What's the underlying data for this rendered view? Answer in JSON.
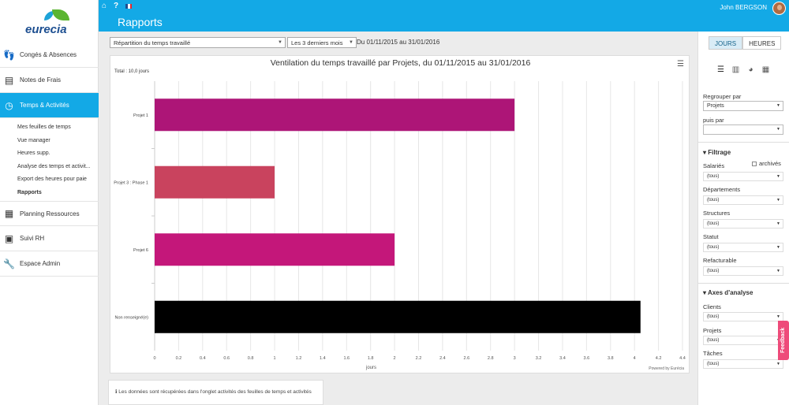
{
  "app": {
    "brand": "eurecia",
    "page_title": "Rapports",
    "user_name": "John  BERGSON"
  },
  "sidebar": {
    "items": [
      {
        "label": "Congés & Absences",
        "icon": "flip-flops-icon"
      },
      {
        "label": "Notes de Frais",
        "icon": "receipt-icon"
      },
      {
        "label": "Temps & Activités",
        "icon": "clock-icon"
      },
      {
        "label": "Planning Ressources",
        "icon": "calendar-icon"
      },
      {
        "label": "Suivi RH",
        "icon": "folder-user-icon"
      },
      {
        "label": "Espace Admin",
        "icon": "wrench-icon"
      }
    ],
    "subitems": [
      "Mes feuilles de temps",
      "Vue manager",
      "Heures supp.",
      "Analyse des temps et activit...",
      "Export des heures pour paie",
      "Rapports"
    ]
  },
  "filters": {
    "report_type": "Répartition du temps travaillé",
    "period": "Les 3 derniers mois",
    "date_range": "Du 01/11/2015  au 31/01/2016"
  },
  "chart_meta": {
    "total": "Total : 10,0 jours",
    "powered": "Powered by Eurécia",
    "menu_icon": "hamburger-icon"
  },
  "chart_data": {
    "type": "bar",
    "orientation": "horizontal",
    "title": "Ventilation du temps travaillé par Projets, du 01/11/2015 au 31/01/2016",
    "xlabel": "jours",
    "categories": [
      "Projet 1",
      "Projet 3 : Phase 1",
      "Projet 6",
      "Non renseigné(e)"
    ],
    "values": [
      3.0,
      1.0,
      2.0,
      4.05
    ],
    "colors": [
      "#ad1577",
      "#c9435e",
      "#c4177a",
      "#000000"
    ],
    "xlim": [
      0,
      4.4
    ],
    "xticks": [
      "0",
      "0.2",
      "0.4",
      "0.6",
      "0.8",
      "1",
      "1.2",
      "1.4",
      "1.6",
      "1.8",
      "2",
      "2.2",
      "2.4",
      "2.6",
      "2.8",
      "3",
      "3.2",
      "3.4",
      "3.6",
      "3.8",
      "4",
      "4.2",
      "4.4"
    ],
    "grid": true
  },
  "info": "Les données sont récupérées dans l'onglet activités des feuilles de temps et activités",
  "right_panel": {
    "toggle": [
      "JOURS",
      "HEURES"
    ],
    "group_by_label": "Regrouper par",
    "group_by_value": "Projets",
    "then_by_label": "puis par",
    "then_by_value": "",
    "filter_head": "Filtrage",
    "archived_label": "archivés",
    "filters": [
      {
        "label": "Salariés",
        "value": "(tous)"
      },
      {
        "label": "Départements",
        "value": "(tous)"
      },
      {
        "label": "Structures",
        "value": "(tous)"
      },
      {
        "label": "Statut",
        "value": "(tous)"
      },
      {
        "label": "Refacturable",
        "value": "(tous)"
      }
    ],
    "axes_head": "Axes d'analyse",
    "axes": [
      {
        "label": "Clients",
        "value": "(tous)"
      },
      {
        "label": "Projets",
        "value": "(tous)"
      },
      {
        "label": "Tâches",
        "value": "(tous)"
      }
    ],
    "feedback": "Feedback"
  }
}
